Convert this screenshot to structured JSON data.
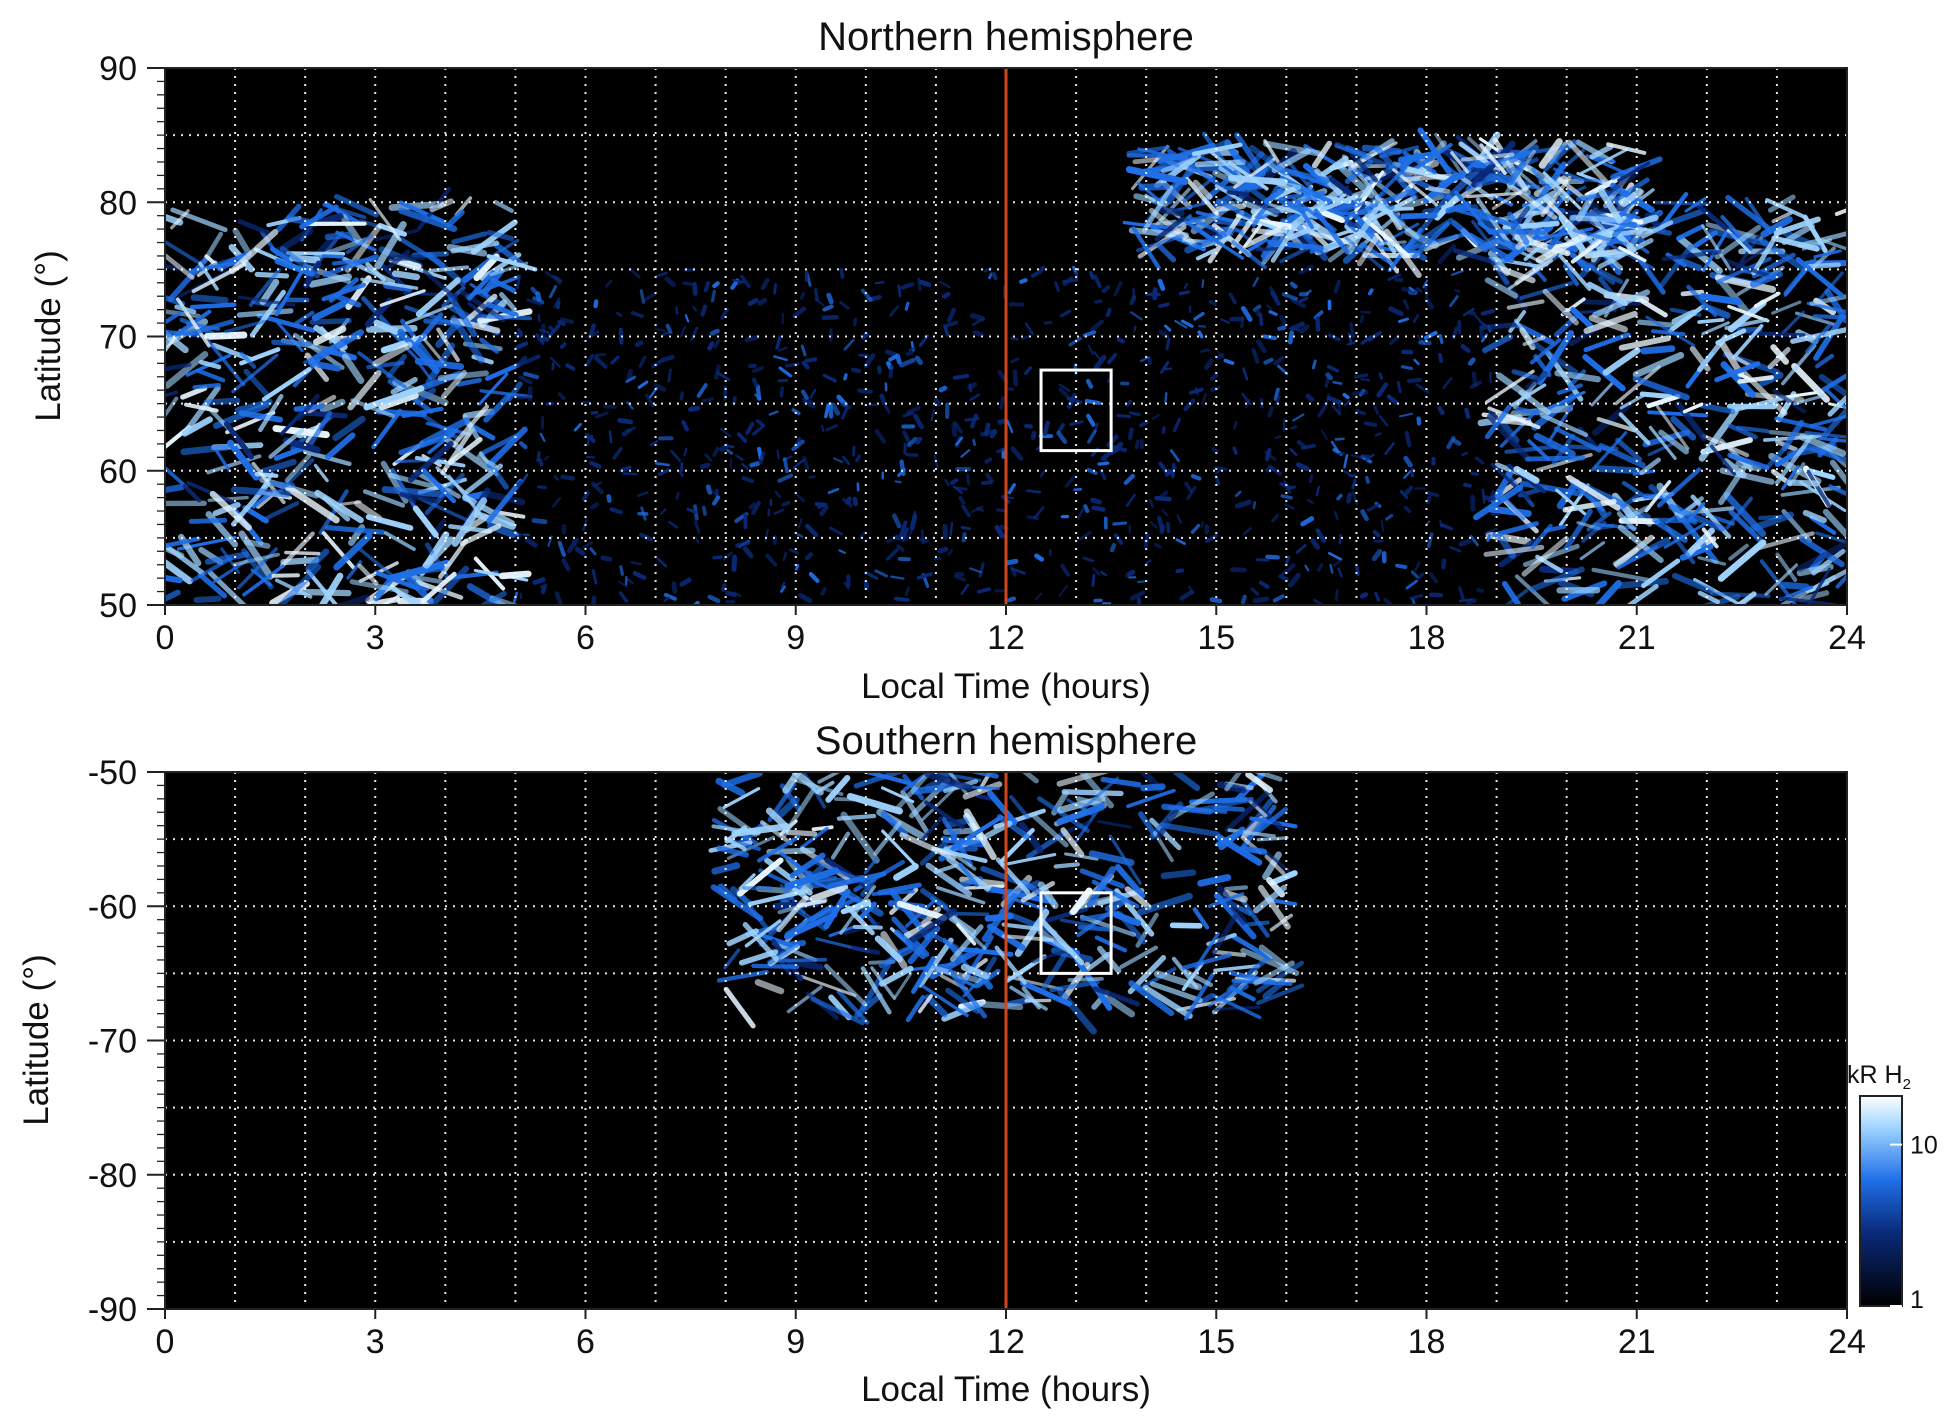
{
  "colors": {
    "background": "#000000",
    "emission_dim": "#0a2a7a",
    "emission_mid": "#1f6fe8",
    "emission_bright": "#9fd4ff",
    "emission_peak": "#e8f6ff",
    "noon_line": "#d2461b",
    "grid": "#ffffff",
    "box": "#ffffff"
  },
  "chart_data": [
    {
      "type": "heatmap",
      "title": "Northern hemisphere",
      "xlabel": "Local Time (hours)",
      "ylabel": "Latitude (°)",
      "xlim": [
        0,
        24
      ],
      "ylim": [
        50,
        90
      ],
      "x_ticks": [
        0,
        3,
        6,
        9,
        12,
        15,
        18,
        21,
        24
      ],
      "y_ticks": [
        50,
        60,
        70,
        80,
        90
      ],
      "grid": true,
      "grid_x_step": 1,
      "grid_y_step": 5,
      "noon_line_x": 12,
      "box": {
        "x": [
          12.5,
          13.5
        ],
        "y": [
          61.5,
          67.5
        ]
      },
      "features": [
        {
          "name": "auroral oval (post-midnight)",
          "lt": [
            0,
            5
          ],
          "lat": [
            50,
            80
          ],
          "intensity": "high"
        },
        {
          "name": "auroral oval (pre-midnight)",
          "lt": [
            19,
            24
          ],
          "lat": [
            50,
            80
          ],
          "intensity": "high"
        },
        {
          "name": "polar arc",
          "lt": [
            14,
            21
          ],
          "lat": [
            76,
            84
          ],
          "intensity": "high"
        },
        {
          "name": "diffuse dayside emission",
          "lt": [
            5,
            19
          ],
          "lat": [
            50,
            75
          ],
          "intensity": "low"
        }
      ]
    },
    {
      "type": "heatmap",
      "title": "Southern hemisphere",
      "xlabel": "Local Time (hours)",
      "ylabel": "Latitude (°)",
      "xlim": [
        0,
        24
      ],
      "ylim": [
        -90,
        -50
      ],
      "x_ticks": [
        0,
        3,
        6,
        9,
        12,
        15,
        18,
        21,
        24
      ],
      "y_ticks": [
        -90,
        -80,
        -70,
        -60,
        -50
      ],
      "grid": true,
      "grid_x_step": 1,
      "grid_y_step": 5,
      "noon_line_x": 12,
      "box": {
        "x": [
          12.5,
          13.5
        ],
        "y": [
          -65,
          -59
        ]
      },
      "features": [
        {
          "name": "auroral oval (dayside)",
          "lt": [
            8,
            16
          ],
          "lat": [
            -68,
            -50
          ],
          "intensity": "high"
        }
      ]
    }
  ],
  "colorbar": {
    "label_main": "kR H",
    "label_sub": "2",
    "scale": "log",
    "range": [
      1,
      20
    ],
    "ticks": [
      1,
      10
    ]
  }
}
